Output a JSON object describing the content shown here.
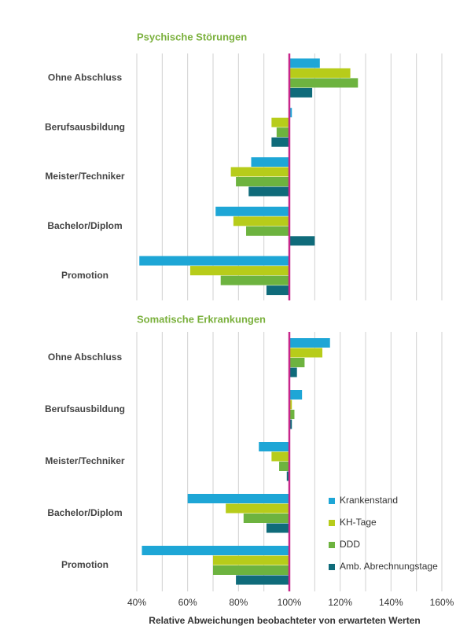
{
  "chart_data": [
    {
      "type": "hbar",
      "title": "Psychische Störungen",
      "categories": [
        "Ohne Abschluss",
        "Berufsausbildung",
        "Meister/Techniker",
        "Bachelor/Diplom",
        "Promotion"
      ],
      "series": [
        {
          "color": "#1ea6d6",
          "values": [
            112,
            101,
            85,
            71,
            41
          ]
        },
        {
          "color": "#b7cc1a",
          "values": [
            124,
            93,
            77,
            78,
            61
          ]
        },
        {
          "color": "#6db33f",
          "values": [
            127,
            95,
            79,
            83,
            73
          ]
        },
        {
          "color": "#0f6b7a",
          "values": [
            109,
            93,
            84,
            110,
            91
          ]
        }
      ],
      "xlim": [
        40,
        160
      ],
      "xgrid": [
        40,
        50,
        60,
        70,
        80,
        90,
        100,
        110,
        120,
        130,
        140,
        150,
        160
      ],
      "reference_line": 100,
      "reference_color": "#c8258a"
    },
    {
      "type": "hbar",
      "title": "Somatische Erkrankungen",
      "categories": [
        "Ohne Abschluss",
        "Berufsausbildung",
        "Meister/Techniker",
        "Bachelor/Diplom",
        "Promotion"
      ],
      "series": [
        {
          "name": "Krankenstand",
          "color": "#1ea6d6",
          "values": [
            116,
            105,
            88,
            60,
            42
          ]
        },
        {
          "name": "KH-Tage",
          "color": "#b7cc1a",
          "values": [
            113,
            101,
            93,
            75,
            70
          ]
        },
        {
          "name": "DDD",
          "color": "#6db33f",
          "values": [
            106,
            102,
            96,
            82,
            70
          ]
        },
        {
          "name": "Amb. Abrechnungstage",
          "color": "#0f6b7a",
          "values": [
            103,
            101,
            99,
            91,
            79
          ]
        }
      ],
      "xlim": [
        40,
        160
      ],
      "xgrid": [
        40,
        50,
        60,
        70,
        80,
        90,
        100,
        110,
        120,
        130,
        140,
        150,
        160
      ],
      "xticks": [
        {
          "value": 40,
          "label": "40%"
        },
        {
          "value": 60,
          "label": "60%"
        },
        {
          "value": 80,
          "label": "80%"
        },
        {
          "value": 100,
          "label": "100%"
        },
        {
          "value": 120,
          "label": "120%"
        },
        {
          "value": 140,
          "label": "140%"
        },
        {
          "value": 160,
          "label": "160%"
        }
      ],
      "xlabel": "Relative Abweichungen beobachteter von erwarteten Werten",
      "legend": "lower right",
      "reference_line": 100,
      "reference_color": "#c8258a"
    }
  ]
}
